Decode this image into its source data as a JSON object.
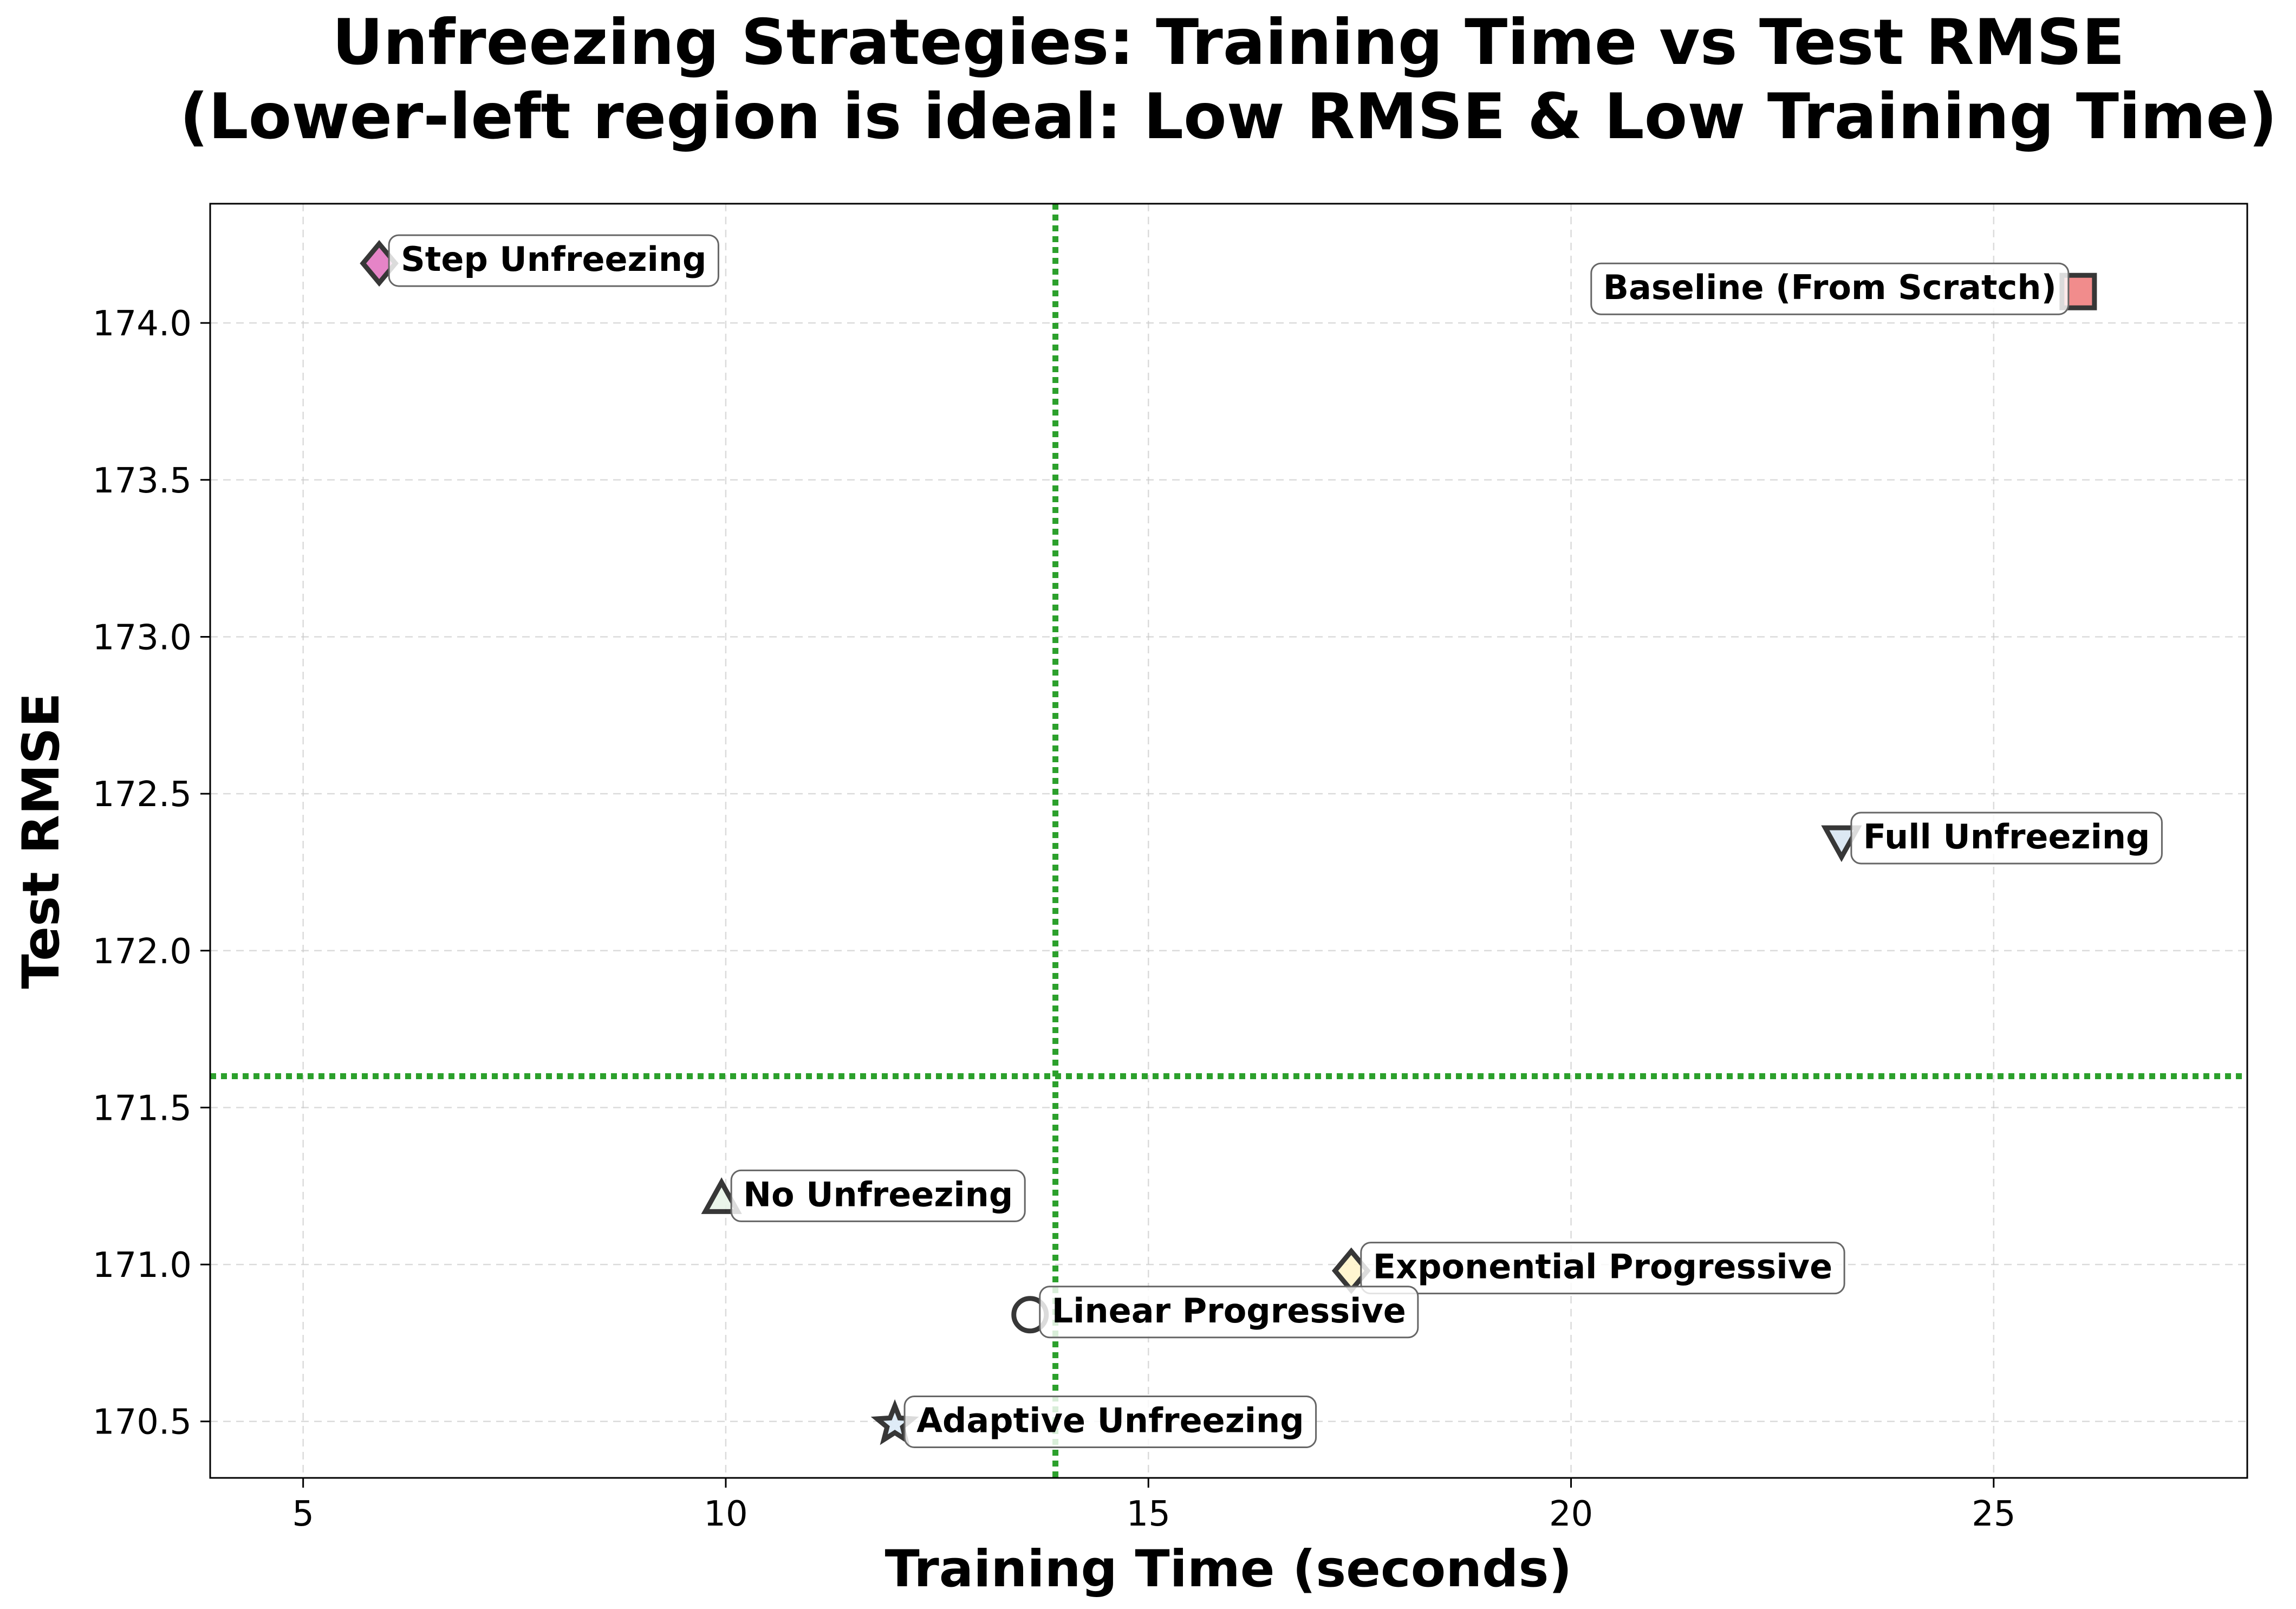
{
  "chart_data": {
    "type": "scatter",
    "title_line1": "Unfreezing Strategies: Training Time vs Test RMSE",
    "title_line2": "(Lower-left region is ideal: Low RMSE & Low Training Time)",
    "xlabel": "Training Time (seconds)",
    "ylabel": "Test RMSE",
    "xlim": [
      3.9,
      28.0
    ],
    "ylim": [
      170.32,
      174.38
    ],
    "xticks": [
      5,
      10,
      15,
      20,
      25
    ],
    "yticks": [
      170.5,
      171.0,
      171.5,
      172.0,
      172.5,
      173.0,
      173.5,
      174.0
    ],
    "grid": true,
    "reference_lines": {
      "x": 13.9,
      "y": 171.6,
      "color": "#2ca02c",
      "style": "dotted"
    },
    "points": [
      {
        "label": "Step Unfreezing",
        "x": 5.9,
        "y": 174.19,
        "marker": "diamond",
        "color": "#e377c2",
        "label_anchor": "right"
      },
      {
        "label": "Baseline (From Scratch)",
        "x": 26.0,
        "y": 174.1,
        "marker": "square",
        "color": "#f08080",
        "label_anchor": "left"
      },
      {
        "label": "Full Unfreezing",
        "x": 23.2,
        "y": 172.35,
        "marker": "triangle-down",
        "color": "#d9e6f2",
        "label_anchor": "right"
      },
      {
        "label": "No Unfreezing",
        "x": 9.95,
        "y": 171.21,
        "marker": "triangle-up",
        "color": "#e8f4e8",
        "label_anchor": "right"
      },
      {
        "label": "Exponential Progressive",
        "x": 17.4,
        "y": 170.98,
        "marker": "diamond",
        "color": "#fff5cc",
        "label_anchor": "right"
      },
      {
        "label": "Linear Progressive",
        "x": 13.6,
        "y": 170.84,
        "marker": "circle",
        "color": "#ffffff",
        "label_anchor": "right"
      },
      {
        "label": "Adaptive Unfreezing",
        "x": 12.0,
        "y": 170.49,
        "marker": "star",
        "color": "#dcebf7",
        "label_anchor": "right"
      }
    ]
  }
}
